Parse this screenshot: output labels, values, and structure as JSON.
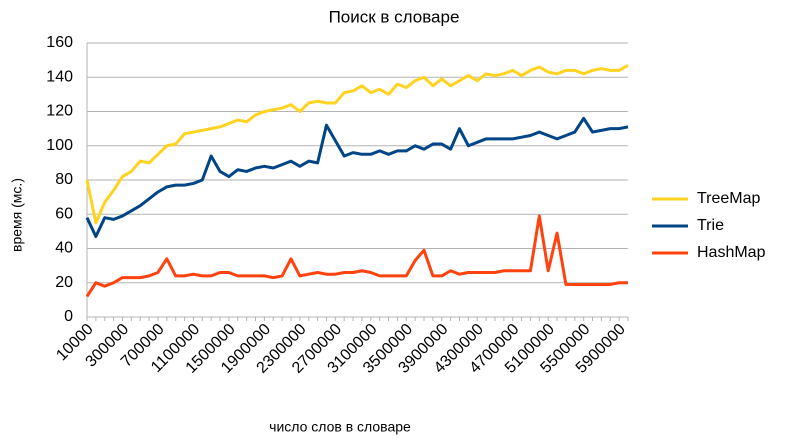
{
  "chart_data": {
    "type": "line",
    "title": "Поиск в словаре",
    "x_label": "число слов в словаре",
    "y_label": "время (мс.)",
    "categories": [
      "10000",
      null,
      null,
      null,
      "300000",
      null,
      null,
      null,
      "700000",
      null,
      null,
      null,
      "1100000",
      null,
      null,
      null,
      "1500000",
      null,
      null,
      null,
      "1900000",
      null,
      null,
      null,
      "2300000",
      null,
      null,
      null,
      "2700000",
      null,
      null,
      null,
      "3100000",
      null,
      null,
      null,
      "3500000",
      null,
      null,
      null,
      "3900000",
      null,
      null,
      null,
      "4300000",
      null,
      null,
      null,
      "4700000",
      null,
      null,
      null,
      "5100000",
      null,
      null,
      null,
      "5500000",
      null,
      null,
      null,
      "5900000",
      null
    ],
    "series": [
      {
        "name": "TreeMap",
        "color": "#ffd320",
        "values": [
          80,
          55,
          67,
          74,
          82,
          85,
          91,
          90,
          95,
          100,
          101,
          107,
          108,
          109,
          110,
          111,
          113,
          115,
          114,
          118,
          120,
          121,
          122,
          124,
          120,
          125,
          126,
          125,
          125,
          131,
          132,
          135,
          131,
          133,
          130,
          136,
          134,
          138,
          140,
          135,
          139,
          135,
          138,
          141,
          138,
          142,
          141,
          142,
          144,
          141,
          144,
          146,
          143,
          142,
          144,
          144,
          142,
          144,
          145,
          144,
          144,
          147
        ]
      },
      {
        "name": "Trie",
        "color": "#004586",
        "values": [
          58,
          47,
          58,
          57,
          59,
          62,
          65,
          69,
          73,
          76,
          77,
          77,
          78,
          80,
          94,
          85,
          82,
          86,
          85,
          87,
          88,
          87,
          89,
          91,
          88,
          91,
          90,
          112,
          103,
          94,
          96,
          95,
          95,
          97,
          95,
          97,
          97,
          100,
          98,
          101,
          101,
          98,
          110,
          100,
          102,
          104,
          104,
          104,
          104,
          105,
          106,
          108,
          106,
          104,
          106,
          108,
          116,
          108,
          109,
          110,
          110,
          111
        ]
      },
      {
        "name": "HashMap",
        "color": "#ff420e",
        "values": [
          12,
          20,
          18,
          20,
          23,
          23,
          23,
          24,
          26,
          34,
          24,
          24,
          25,
          24,
          24,
          26,
          26,
          24,
          24,
          24,
          24,
          23,
          24,
          34,
          24,
          25,
          26,
          25,
          25,
          26,
          26,
          27,
          26,
          24,
          24,
          24,
          24,
          33,
          39,
          24,
          24,
          27,
          25,
          26,
          26,
          26,
          26,
          27,
          27,
          27,
          27,
          59,
          27,
          49,
          19,
          19,
          19,
          19,
          19,
          19,
          20,
          20
        ]
      }
    ],
    "ylim": [
      0,
      160
    ],
    "yticks": [
      0,
      20,
      40,
      60,
      80,
      100,
      120,
      140,
      160
    ],
    "grid": true,
    "legend": "right"
  }
}
